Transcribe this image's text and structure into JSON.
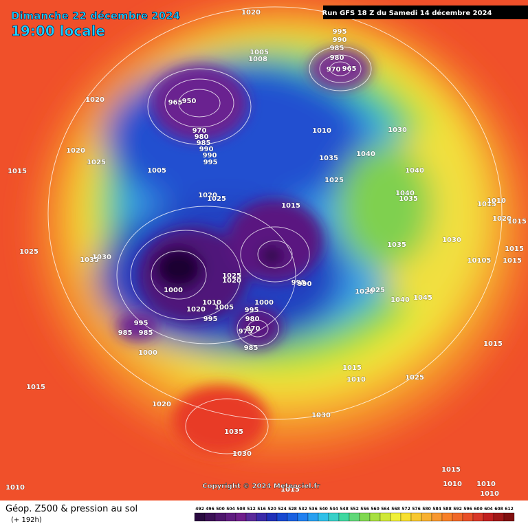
{
  "header": {
    "date": "Dimanche 22 décembre 2024",
    "time": "19:00 locale",
    "run": "Run GFS 18 Z du Samedi 14 décembre 2024"
  },
  "footer": {
    "title": "Géop. Z500 & pression au sol",
    "subtitle": "(+ 192h)",
    "copyright": "Copyright © 2024 Meteociel.fr"
  },
  "legend_scale": [
    492,
    496,
    500,
    504,
    508,
    512,
    516,
    520,
    524,
    528,
    532,
    536,
    540,
    544,
    548,
    552,
    556,
    560,
    564,
    568,
    572,
    576,
    580,
    584,
    588,
    592,
    596,
    600,
    604,
    608,
    612
  ],
  "isobar_labels": [
    "1020",
    "995",
    "990",
    "985",
    "980",
    "970",
    "965",
    "1005",
    "1008",
    "1020",
    "965",
    "950",
    "970",
    "980",
    "985",
    "990",
    "990",
    "995",
    "1010",
    "1030",
    "1020",
    "1025",
    "1005",
    "1035",
    "1040",
    "1025",
    "1040",
    "1040",
    "1035",
    "1015",
    "1010",
    "1020",
    "1015",
    "1015",
    "1020",
    "1025",
    "1015",
    "1035",
    "1030",
    "1015",
    "1015",
    "10105",
    "1025",
    "1035",
    "1030",
    "1025",
    "1020",
    "995",
    "990",
    "1000",
    "1020",
    "1025",
    "1040",
    "1045",
    "1010",
    "1005",
    "1000",
    "1020",
    "995",
    "980",
    "995",
    "970",
    "975",
    "995",
    "985",
    "985",
    "985",
    "1000",
    "1015",
    "1010",
    "1025",
    "1015",
    "1015",
    "1020",
    "1030",
    "1035",
    "1030",
    "1015",
    "1010",
    "1010",
    "1010",
    "1010",
    "1015"
  ]
}
